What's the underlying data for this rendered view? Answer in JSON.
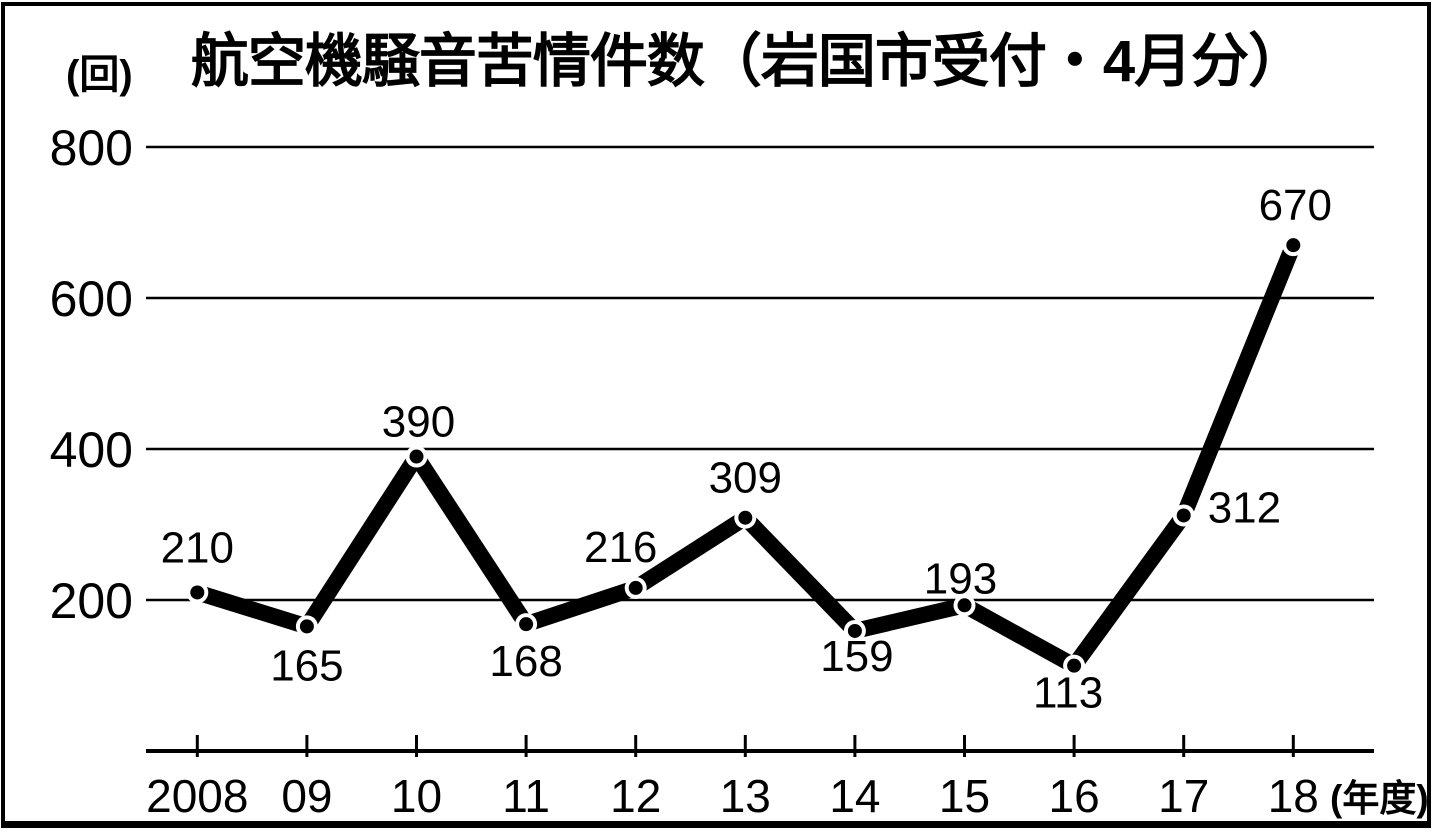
{
  "chart_data": {
    "type": "line",
    "title": "航空機騒音苦情件数（岩国市受付・4月分）",
    "unit_label": "(回)",
    "x_axis_suffix": "(年度)",
    "categories": [
      "2008",
      "09",
      "10",
      "11",
      "12",
      "13",
      "14",
      "15",
      "16",
      "17",
      "18"
    ],
    "values": [
      210,
      165,
      390,
      168,
      216,
      309,
      159,
      193,
      113,
      312,
      670
    ],
    "yticks": [
      200,
      400,
      600,
      800
    ],
    "ylim": [
      0,
      800
    ],
    "grid": true,
    "legend": "none",
    "line_color": "#000000",
    "grid_color": "#000000",
    "background_color": "#ffffff",
    "point_style": "black-dot-white-ring",
    "value_label_placements": [
      "above",
      "below",
      "above",
      "below",
      "above-left",
      "above",
      "below",
      "above",
      "below",
      "right",
      "above"
    ]
  }
}
